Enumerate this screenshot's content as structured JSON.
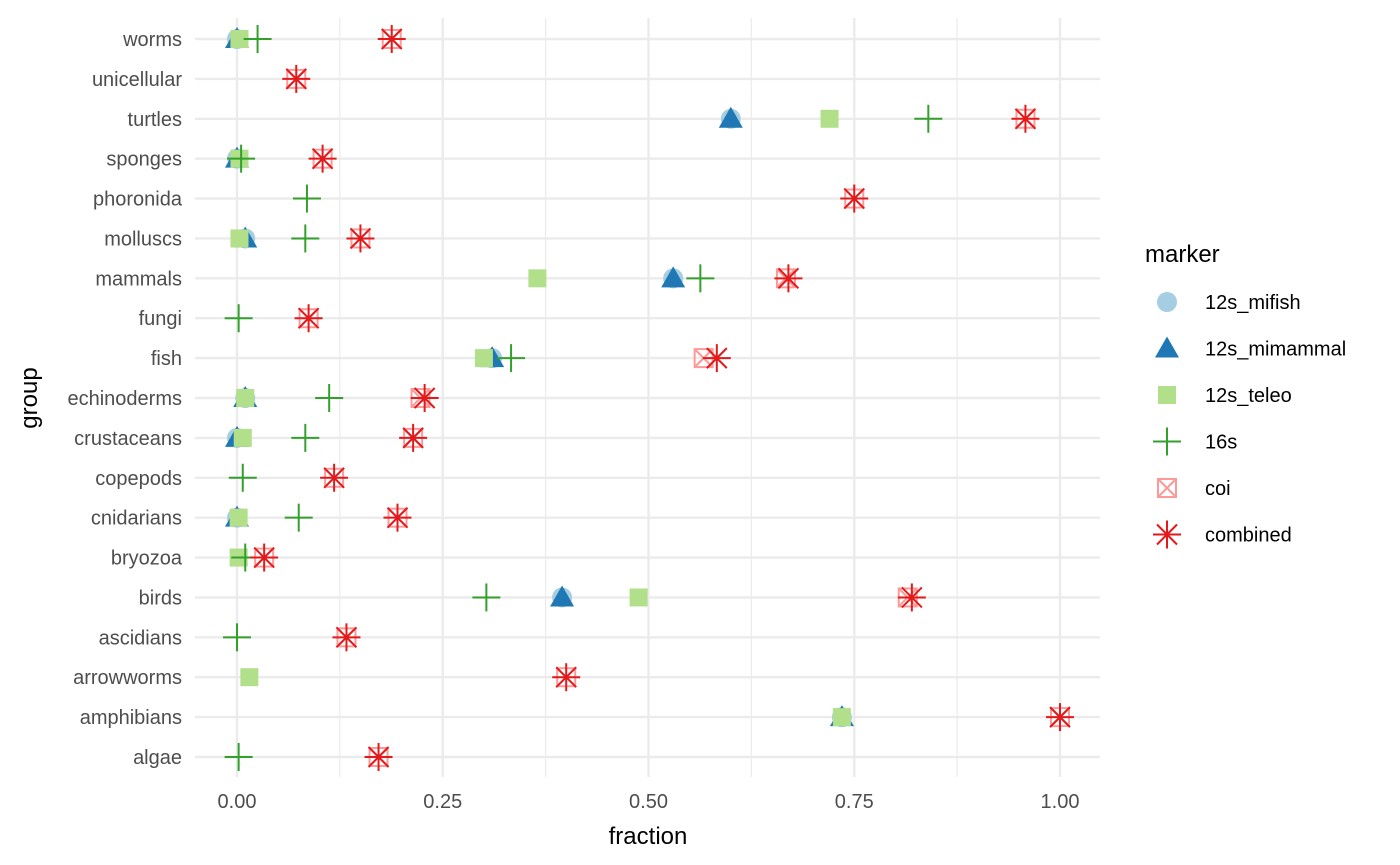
{
  "chart_data": {
    "type": "scatter",
    "xlabel": "fraction",
    "ylabel": "group",
    "xlim": [
      -0.05,
      1.05
    ],
    "x_ticks": [
      0,
      0.25,
      0.5,
      0.75,
      1
    ],
    "x_tick_labels": [
      "0.00",
      "0.25",
      "0.50",
      "0.75",
      "1.00"
    ],
    "categories": [
      "worms",
      "unicellular",
      "turtles",
      "sponges",
      "phoronida",
      "molluscs",
      "mammals",
      "fungi",
      "fish",
      "echinoderms",
      "crustaceans",
      "copepods",
      "cnidarians",
      "bryozoa",
      "birds",
      "ascidians",
      "arrowworms",
      "amphibians",
      "algae"
    ],
    "grid": true,
    "legend": {
      "title": "marker",
      "position": "right"
    },
    "series": [
      {
        "name": "12s_mifish",
        "shape": "circle",
        "color": "#a6cee3",
        "values": [
          0.0,
          null,
          0.6,
          0.0,
          null,
          0.01,
          0.53,
          null,
          0.31,
          0.01,
          0.0,
          null,
          0.0,
          null,
          0.395,
          null,
          null,
          0.735,
          null
        ]
      },
      {
        "name": "12s_mimammal",
        "shape": "triangle",
        "color": "#1f78b4",
        "values": [
          0.0,
          null,
          0.6,
          0.0,
          null,
          0.01,
          0.53,
          null,
          0.31,
          0.01,
          0.0,
          null,
          0.0,
          null,
          0.395,
          null,
          null,
          0.735,
          null
        ]
      },
      {
        "name": "12s_teleo",
        "shape": "square",
        "color": "#b2df8a",
        "values": [
          0.003,
          null,
          0.72,
          0.003,
          null,
          0.003,
          0.365,
          null,
          0.3,
          0.01,
          0.007,
          null,
          0.002,
          0.002,
          0.488,
          null,
          0.015,
          0.735,
          null
        ]
      },
      {
        "name": "16s",
        "shape": "plus",
        "color": "#33a02c",
        "values": [
          0.025,
          null,
          0.84,
          0.005,
          0.085,
          0.083,
          0.563,
          0.002,
          0.333,
          0.112,
          0.083,
          0.007,
          0.075,
          0.01,
          0.303,
          0.0,
          null,
          null,
          0.002
        ]
      },
      {
        "name": "coi",
        "shape": "square-x",
        "color": "#fb9a99",
        "values": [
          0.188,
          0.072,
          0.958,
          0.104,
          0.75,
          0.15,
          0.667,
          0.087,
          0.567,
          0.223,
          0.214,
          0.118,
          0.195,
          0.033,
          0.815,
          0.133,
          0.4,
          1.0,
          0.172
        ]
      },
      {
        "name": "combined",
        "shape": "asterisk",
        "color": "#e31a1c",
        "values": [
          0.188,
          0.072,
          0.958,
          0.104,
          0.75,
          0.15,
          0.67,
          0.087,
          0.583,
          0.228,
          0.214,
          0.118,
          0.195,
          0.033,
          0.82,
          0.133,
          0.4,
          1.0,
          0.172
        ]
      }
    ]
  }
}
